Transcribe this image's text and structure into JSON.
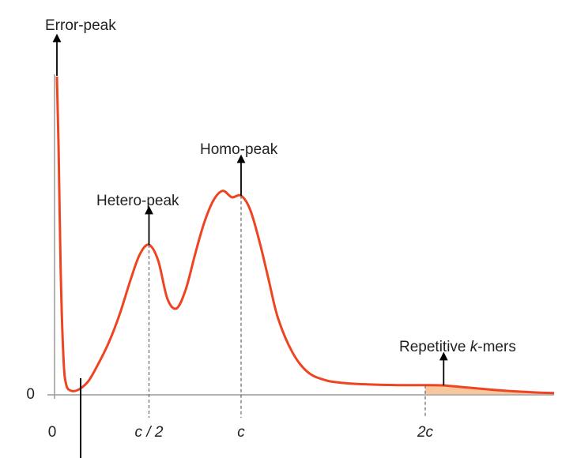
{
  "chart_data": {
    "type": "line",
    "title": "",
    "xlabel": "",
    "ylabel": "",
    "x_ticks": [
      {
        "x": 0,
        "label": "0"
      },
      {
        "x": 0.5,
        "label": "c / 2"
      },
      {
        "x": 1,
        "label": "c"
      },
      {
        "x": 2,
        "label": "2c"
      }
    ],
    "y_ticks": [
      {
        "y": 0,
        "label": "0"
      }
    ],
    "xlim": [
      0,
      2.7
    ],
    "ylim": [
      0,
      1
    ],
    "peaks": [
      {
        "name": "Error-peak",
        "x": 0.0
      },
      {
        "name": "Hetero-peak",
        "x": 0.5
      },
      {
        "name": "Homo-peak",
        "x": 1.0
      },
      {
        "name": "Repetitive k-mers",
        "x": 2.1
      }
    ],
    "annotations": {
      "error_peak": "Error-peak",
      "hetero_peak": "Hetero-peak",
      "homo_peak": "Homo-peak",
      "repetitive_prefix": "Repetitive ",
      "repetitive_italic": "k",
      "repetitive_suffix": "-mers"
    },
    "curve": {
      "x": [
        0.0,
        0.01,
        0.02,
        0.035,
        0.05,
        0.08,
        0.12,
        0.17,
        0.22,
        0.28,
        0.34,
        0.4,
        0.45,
        0.5,
        0.55,
        0.6,
        0.65,
        0.7,
        0.75,
        0.8,
        0.85,
        0.9,
        0.95,
        1.0,
        1.05,
        1.1,
        1.15,
        1.2,
        1.28,
        1.36,
        1.45,
        1.55,
        1.7,
        1.85,
        2.0,
        2.1,
        2.2,
        2.3,
        2.4,
        2.5,
        2.6,
        2.7
      ],
      "y": [
        1.0,
        0.75,
        0.4,
        0.12,
        0.03,
        0.01,
        0.015,
        0.04,
        0.09,
        0.16,
        0.25,
        0.36,
        0.44,
        0.47,
        0.42,
        0.3,
        0.27,
        0.33,
        0.44,
        0.54,
        0.61,
        0.64,
        0.62,
        0.625,
        0.58,
        0.48,
        0.36,
        0.24,
        0.13,
        0.07,
        0.045,
        0.035,
        0.03,
        0.028,
        0.028,
        0.027,
        0.022,
        0.017,
        0.012,
        0.008,
        0.005,
        0.003
      ]
    },
    "repetitive_region": {
      "x_start": 2.0,
      "x_end": 2.7
    },
    "colors": {
      "curve": "#ee4422",
      "fill": "#f9c79e",
      "axis": "#999999",
      "arrow": "#000000"
    }
  }
}
